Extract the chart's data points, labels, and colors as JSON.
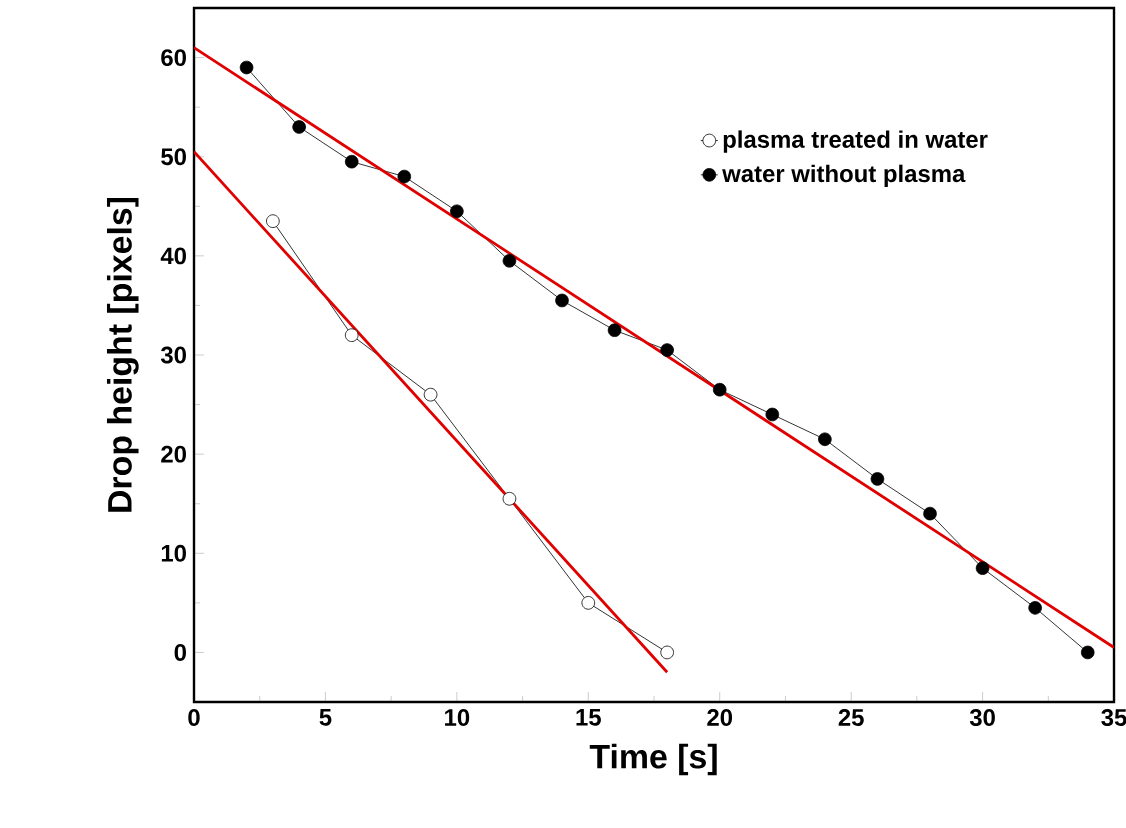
{
  "chart_data": {
    "type": "line",
    "xlabel": "Time [s]",
    "ylabel": "Drop height [pixels]",
    "xlim": [
      0,
      35
    ],
    "ylim": [
      -5,
      65
    ],
    "xticks": [
      0,
      5,
      10,
      15,
      20,
      25,
      30,
      35
    ],
    "yticks": [
      0,
      10,
      20,
      30,
      40,
      50,
      60
    ],
    "grid": false,
    "legend": "top right",
    "series": [
      {
        "name": "plasma treated in water",
        "color": "#000000",
        "marker": "circle",
        "x": [
          3,
          6,
          9,
          12,
          15,
          18
        ],
        "values": [
          43.5,
          32,
          26,
          15.5,
          5,
          0
        ]
      },
      {
        "name": "water without plasma",
        "color": "#000000",
        "marker": "circle",
        "x": [
          2,
          4,
          6,
          8,
          10,
          12,
          14,
          16,
          18,
          20,
          22,
          24,
          26,
          28,
          30,
          32,
          34
        ],
        "values": [
          59,
          53,
          49.5,
          48,
          44.5,
          39.5,
          35.5,
          32.5,
          30.5,
          26.5,
          24,
          21.5,
          17.5,
          14,
          8.5,
          4.5,
          0
        ]
      },
      {
        "marker": "none",
        "color": "#e00000",
        "x": [
          0,
          18
        ],
        "values": [
          50.5,
          -2
        ]
      },
      {
        "marker": "none",
        "color": "#e00000",
        "x": [
          0,
          35
        ],
        "values": [
          61,
          0.5
        ]
      }
    ]
  }
}
